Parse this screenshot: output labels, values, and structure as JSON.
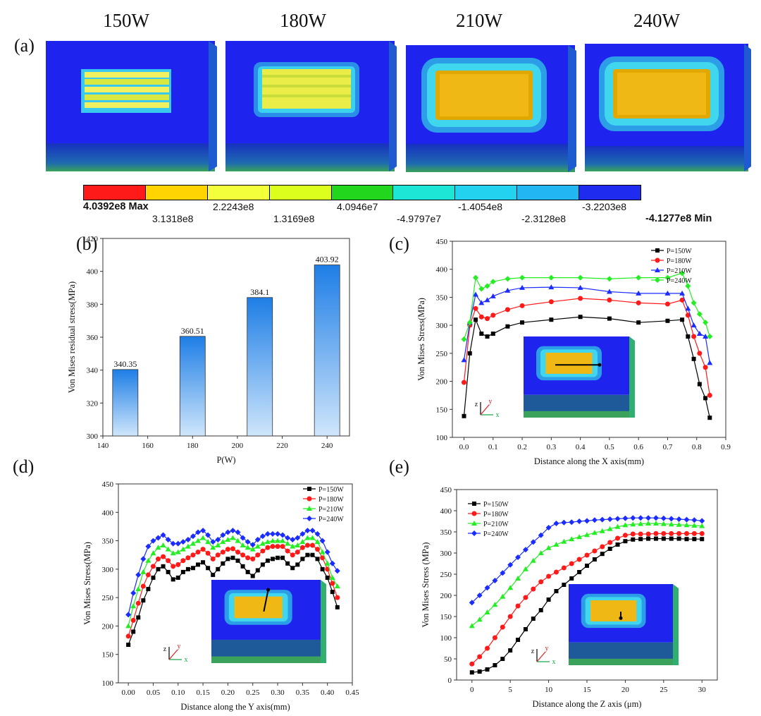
{
  "panel_a": {
    "label": "(a)",
    "powers": [
      "150W",
      "180W",
      "210W",
      "240W"
    ],
    "colorbar": {
      "colors": [
        "#ff1a1a",
        "#ffd400",
        "#f2ff3a",
        "#dcff1e",
        "#22d61e",
        "#1ee6d6",
        "#22d2ee",
        "#22b6f2",
        "#1f2cf0"
      ],
      "labels": [
        "4.0392e8 Max",
        "3.1318e8",
        "2.2243e8",
        "1.3169e8",
        "4.0946e7",
        "-4.9797e7",
        "-1.4054e8",
        "-2.3128e8",
        "-3.2203e8",
        "-4.1277e8 Min"
      ]
    }
  },
  "chart_data": [
    {
      "panel": "(b)",
      "type": "bar",
      "xlabel": "P(W)",
      "ylabel": "Von Mises residual stress(MPa)",
      "xlim": [
        140,
        250
      ],
      "ylim": [
        300,
        420
      ],
      "xticks": [
        140,
        160,
        180,
        200,
        220,
        240
      ],
      "yticks": [
        300,
        320,
        340,
        360,
        380,
        400,
        420
      ],
      "x": [
        150,
        180,
        210,
        240
      ],
      "values": [
        340.35,
        360.51,
        384.1,
        403.92
      ],
      "value_labels": [
        "340.35",
        "360.51",
        "384.1",
        "403.92"
      ]
    },
    {
      "panel": "(c)",
      "type": "line",
      "xlabel": "Distance along the X axis(mm)",
      "ylabel": "Von Mises Stress(MPa)",
      "xlim": [
        -0.04,
        0.9
      ],
      "ylim": [
        100,
        450
      ],
      "xticks": [
        0.0,
        0.1,
        0.2,
        0.3,
        0.4,
        0.5,
        0.6,
        0.7,
        0.8,
        0.9
      ],
      "xtick_labels": [
        "0.0",
        "0.1",
        "0.2",
        "0.3",
        "0.4",
        "0.5",
        "0.6",
        "0.7",
        "0.8",
        "0.9"
      ],
      "yticks": [
        100,
        150,
        200,
        250,
        300,
        350,
        400,
        450
      ],
      "legend": "top-right",
      "series": [
        {
          "name": "P=150W",
          "color": "#000000",
          "marker": "square",
          "x": [
            0.0,
            0.02,
            0.04,
            0.06,
            0.08,
            0.1,
            0.15,
            0.2,
            0.3,
            0.4,
            0.5,
            0.6,
            0.7,
            0.75,
            0.77,
            0.79,
            0.81,
            0.83,
            0.845
          ],
          "y": [
            138,
            250,
            310,
            285,
            280,
            285,
            298,
            305,
            310,
            315,
            312,
            305,
            308,
            310,
            280,
            240,
            195,
            170,
            135
          ]
        },
        {
          "name": "P=180W",
          "color": "#ff1a1a",
          "marker": "circle",
          "x": [
            0.0,
            0.02,
            0.04,
            0.06,
            0.08,
            0.1,
            0.15,
            0.2,
            0.3,
            0.4,
            0.5,
            0.6,
            0.7,
            0.75,
            0.77,
            0.79,
            0.81,
            0.83,
            0.845
          ],
          "y": [
            198,
            300,
            330,
            315,
            312,
            318,
            328,
            335,
            342,
            348,
            345,
            340,
            338,
            345,
            318,
            280,
            250,
            225,
            175
          ]
        },
        {
          "name": "P=210W",
          "color": "#1a2cff",
          "marker": "triangle",
          "x": [
            0.0,
            0.02,
            0.04,
            0.06,
            0.08,
            0.1,
            0.15,
            0.2,
            0.3,
            0.4,
            0.5,
            0.6,
            0.7,
            0.75,
            0.77,
            0.79,
            0.81,
            0.83,
            0.845
          ],
          "y": [
            238,
            305,
            355,
            340,
            345,
            352,
            362,
            367,
            368,
            367,
            360,
            357,
            357,
            357,
            330,
            300,
            285,
            280,
            233
          ]
        },
        {
          "name": "P=240W",
          "color": "#22ee22",
          "marker": "diamond",
          "x": [
            0.0,
            0.02,
            0.04,
            0.06,
            0.08,
            0.1,
            0.15,
            0.2,
            0.3,
            0.4,
            0.5,
            0.6,
            0.7,
            0.75,
            0.77,
            0.79,
            0.81,
            0.83,
            0.845
          ],
          "y": [
            275,
            305,
            385,
            365,
            370,
            378,
            383,
            385,
            385,
            385,
            383,
            385,
            385,
            393,
            370,
            340,
            320,
            305,
            280
          ]
        }
      ]
    },
    {
      "panel": "(d)",
      "type": "line",
      "xlabel": "Distance along the Y axis(mm)",
      "ylabel": "Von Mises Stress(MPa)",
      "xlim": [
        -0.02,
        0.45
      ],
      "ylim": [
        100,
        450
      ],
      "xticks": [
        0.0,
        0.05,
        0.1,
        0.15,
        0.2,
        0.25,
        0.3,
        0.35,
        0.4,
        0.45
      ],
      "xtick_labels": [
        "0.00",
        "0.05",
        "0.10",
        "0.15",
        "0.20",
        "0.25",
        "0.30",
        "0.35",
        "0.40",
        "0.45"
      ],
      "yticks": [
        100,
        150,
        200,
        250,
        300,
        350,
        400,
        450
      ],
      "legend": "top-right",
      "series": [
        {
          "name": "P=150W",
          "color": "#000000",
          "marker": "square",
          "x": [
            0.0,
            0.01,
            0.02,
            0.03,
            0.04,
            0.05,
            0.06,
            0.07,
            0.08,
            0.09,
            0.1,
            0.11,
            0.12,
            0.13,
            0.14,
            0.15,
            0.16,
            0.17,
            0.18,
            0.19,
            0.2,
            0.21,
            0.22,
            0.23,
            0.24,
            0.25,
            0.26,
            0.27,
            0.28,
            0.29,
            0.3,
            0.31,
            0.32,
            0.33,
            0.34,
            0.35,
            0.36,
            0.37,
            0.38,
            0.39,
            0.4,
            0.41,
            0.42
          ],
          "y": [
            167,
            190,
            215,
            245,
            265,
            285,
            300,
            305,
            295,
            282,
            285,
            295,
            300,
            302,
            308,
            312,
            302,
            290,
            300,
            310,
            318,
            320,
            315,
            305,
            295,
            288,
            298,
            308,
            315,
            318,
            320,
            320,
            310,
            302,
            308,
            318,
            325,
            325,
            318,
            300,
            285,
            260,
            233
          ]
        },
        {
          "name": "P=180W",
          "color": "#ff1a1a",
          "marker": "circle",
          "x": [
            0.0,
            0.01,
            0.02,
            0.03,
            0.04,
            0.05,
            0.06,
            0.07,
            0.08,
            0.09,
            0.1,
            0.11,
            0.12,
            0.13,
            0.14,
            0.15,
            0.16,
            0.17,
            0.18,
            0.19,
            0.2,
            0.21,
            0.22,
            0.23,
            0.24,
            0.25,
            0.26,
            0.27,
            0.28,
            0.29,
            0.3,
            0.31,
            0.32,
            0.33,
            0.34,
            0.35,
            0.36,
            0.37,
            0.38,
            0.39,
            0.4,
            0.41,
            0.42
          ],
          "y": [
            182,
            210,
            240,
            270,
            290,
            305,
            318,
            322,
            315,
            305,
            308,
            315,
            320,
            325,
            330,
            335,
            328,
            318,
            325,
            330,
            335,
            336,
            330,
            325,
            320,
            318,
            325,
            332,
            338,
            340,
            340,
            340,
            332,
            325,
            330,
            338,
            342,
            342,
            335,
            320,
            300,
            275,
            250
          ]
        },
        {
          "name": "P=210W",
          "color": "#22ee22",
          "marker": "triangle",
          "x": [
            0.0,
            0.01,
            0.02,
            0.03,
            0.04,
            0.05,
            0.06,
            0.07,
            0.08,
            0.09,
            0.1,
            0.11,
            0.12,
            0.13,
            0.14,
            0.15,
            0.16,
            0.17,
            0.18,
            0.19,
            0.2,
            0.21,
            0.22,
            0.23,
            0.24,
            0.25,
            0.26,
            0.27,
            0.28,
            0.29,
            0.3,
            0.31,
            0.32,
            0.33,
            0.34,
            0.35,
            0.36,
            0.37,
            0.38,
            0.39,
            0.4,
            0.41,
            0.42
          ],
          "y": [
            200,
            235,
            265,
            295,
            315,
            328,
            338,
            342,
            335,
            328,
            330,
            335,
            340,
            345,
            350,
            355,
            348,
            338,
            342,
            348,
            352,
            355,
            350,
            342,
            338,
            335,
            340,
            345,
            348,
            350,
            350,
            350,
            345,
            340,
            342,
            348,
            355,
            355,
            348,
            330,
            310,
            285,
            270
          ]
        },
        {
          "name": "P=240W",
          "color": "#1a2cff",
          "marker": "diamond",
          "x": [
            0.0,
            0.01,
            0.02,
            0.03,
            0.04,
            0.05,
            0.06,
            0.07,
            0.08,
            0.09,
            0.1,
            0.11,
            0.12,
            0.13,
            0.14,
            0.15,
            0.16,
            0.17,
            0.18,
            0.19,
            0.2,
            0.21,
            0.22,
            0.23,
            0.24,
            0.25,
            0.26,
            0.27,
            0.28,
            0.29,
            0.3,
            0.31,
            0.32,
            0.33,
            0.34,
            0.35,
            0.36,
            0.37,
            0.38,
            0.39,
            0.4,
            0.41,
            0.42
          ],
          "y": [
            220,
            258,
            290,
            318,
            340,
            350,
            355,
            360,
            352,
            345,
            345,
            348,
            352,
            358,
            365,
            368,
            360,
            348,
            352,
            360,
            365,
            368,
            365,
            355,
            348,
            343,
            352,
            358,
            362,
            362,
            362,
            360,
            355,
            352,
            355,
            362,
            368,
            368,
            362,
            350,
            330,
            310,
            297
          ]
        }
      ]
    },
    {
      "panel": "(e)",
      "type": "line",
      "xlabel": "Distance along the Z axis (μm)",
      "ylabel": "Von Mises Stress (MPa)",
      "xlim": [
        -2,
        32
      ],
      "ylim": [
        0,
        450
      ],
      "xticks": [
        0,
        5,
        10,
        15,
        20,
        25,
        30
      ],
      "xtick_labels": [
        "0",
        "5",
        "10",
        "15",
        "20",
        "25",
        "30"
      ],
      "yticks": [
        0,
        50,
        100,
        150,
        200,
        250,
        300,
        350,
        400,
        450
      ],
      "legend": "top-left",
      "series": [
        {
          "name": "P=150W",
          "color": "#000000",
          "marker": "square",
          "x": [
            0,
            1,
            2,
            3,
            4,
            5,
            6,
            7,
            8,
            9,
            10,
            11,
            12,
            13,
            14,
            15,
            16,
            17,
            18,
            19,
            20,
            21,
            22,
            23,
            24,
            25,
            26,
            27,
            28,
            29,
            30
          ],
          "y": [
            18,
            20,
            25,
            35,
            50,
            70,
            95,
            120,
            145,
            165,
            190,
            210,
            225,
            240,
            255,
            270,
            285,
            298,
            310,
            320,
            328,
            332,
            333,
            334,
            334,
            334,
            334,
            334,
            333,
            333,
            333
          ]
        },
        {
          "name": "P=180W",
          "color": "#ff1a1a",
          "marker": "circle",
          "x": [
            0,
            1,
            2,
            3,
            4,
            5,
            6,
            7,
            8,
            9,
            10,
            11,
            12,
            13,
            14,
            15,
            16,
            17,
            18,
            19,
            20,
            21,
            22,
            23,
            24,
            25,
            26,
            27,
            28,
            29,
            30
          ],
          "y": [
            38,
            55,
            75,
            100,
            125,
            150,
            175,
            195,
            215,
            232,
            245,
            255,
            265,
            275,
            285,
            295,
            305,
            315,
            325,
            335,
            342,
            345,
            345,
            345,
            346,
            346,
            346,
            346,
            346,
            346,
            346
          ]
        },
        {
          "name": "P=210W",
          "color": "#22ee22",
          "marker": "triangle",
          "x": [
            0,
            1,
            2,
            3,
            4,
            5,
            6,
            7,
            8,
            9,
            10,
            11,
            12,
            13,
            14,
            15,
            16,
            17,
            18,
            19,
            20,
            21,
            22,
            23,
            24,
            25,
            26,
            27,
            28,
            29,
            30
          ],
          "y": [
            128,
            143,
            160,
            178,
            197,
            218,
            240,
            262,
            282,
            300,
            312,
            320,
            327,
            333,
            338,
            343,
            348,
            352,
            357,
            362,
            366,
            368,
            369,
            370,
            370,
            369,
            368,
            367,
            366,
            365,
            364
          ]
        },
        {
          "name": "P=240W",
          "color": "#1a2cff",
          "marker": "diamond",
          "x": [
            0,
            1,
            2,
            3,
            4,
            5,
            6,
            7,
            8,
            9,
            10,
            11,
            12,
            13,
            14,
            15,
            16,
            17,
            18,
            19,
            20,
            21,
            22,
            23,
            24,
            25,
            26,
            27,
            28,
            29,
            30
          ],
          "y": [
            183,
            200,
            218,
            235,
            253,
            272,
            290,
            308,
            326,
            342,
            360,
            370,
            372,
            373,
            375,
            376,
            378,
            379,
            380,
            381,
            382,
            383,
            383,
            383,
            383,
            382,
            381,
            380,
            379,
            378,
            376
          ]
        }
      ]
    }
  ]
}
